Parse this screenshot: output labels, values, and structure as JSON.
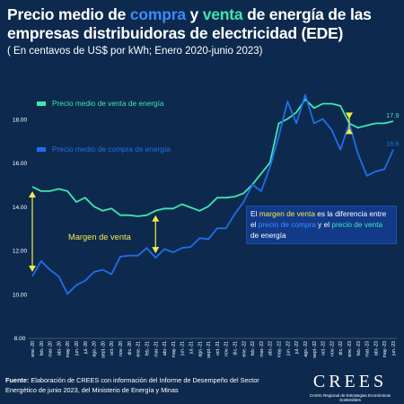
{
  "title": {
    "part1": "Precio medio de ",
    "compra": "compra",
    "part2": " y ",
    "venta": "venta",
    "part3": " de energía de las empresas distribuidoras de electricidad (EDE)"
  },
  "subtitle": "( En centavos de US$ por kWh; Enero 2020-junio 2023)",
  "annotation": {
    "margin_label": "Margen de venta",
    "note_part1": "El ",
    "note_margin": "margen de venta",
    "note_part2": " es la diferencia entre el ",
    "note_compra": "precio de compra",
    "note_part3": " y el ",
    "note_venta": "precio de venta",
    "note_part4": " de energía"
  },
  "source": {
    "prefix": "Fuente:",
    "text": " Elaboración de CREES con información del Informe de Desempeño del Sector Energético de junio 2023, del Ministerio de Energía y Minas"
  },
  "logo": {
    "name": "CREES",
    "tagline": "Centro Regional de Estrategias Económicas Sostenibles"
  },
  "colors": {
    "background": "#0d2a4e",
    "compra": "#1f6ee8",
    "venta": "#3ee6b0",
    "margin_arrow": "#f2ea4a"
  },
  "chart_data": {
    "type": "line",
    "x": [
      "ene.-20",
      "feb.-20",
      "mar.-20",
      "abr.-20",
      "may.-20",
      "jun.-20",
      "jul.-20",
      "ago.-20",
      "sept.-20",
      "oct.-20",
      "nov.-20",
      "dic.-20",
      "ene.-21",
      "feb.-21",
      "mar.-21",
      "abr.-21",
      "may.-21",
      "jun.-21",
      "jul.-21",
      "ago.-21",
      "sept.-21",
      "oct.-21",
      "nov.-21",
      "dic.-21",
      "ene.-22",
      "feb.-22",
      "mar.-22",
      "abr.-22",
      "may.-22",
      "jun.-22",
      "jul.-22",
      "ago.-22",
      "sept.-22",
      "oct.-22",
      "nov.-22",
      "dic.-22",
      "ene.-23",
      "feb.-23",
      "mar.-23",
      "abr.-23",
      "may.-23",
      "jun.-23"
    ],
    "x_tick_labels": [
      "ene.-20",
      "mar.-20",
      "may.-20",
      "jul.-20",
      "sept.-20",
      "nov.-20",
      "ene.-21",
      "mar.-21",
      "may.-21",
      "jul.-21",
      "sept.-21",
      "nov.-21",
      "ene.-22",
      "mar.-22",
      "may.-22",
      "jul.-22",
      "sept.-22",
      "nov.-22",
      "ene.-23",
      "mar.-23",
      "may.-23"
    ],
    "x_tick_labels_full": [
      "ene.-20",
      "feb.-20",
      "mar.-20",
      "abr.-20",
      "may.-20",
      "jun.-20",
      "jul.-20",
      "ago.-20",
      "sept.-20",
      "oct.-20",
      "nov.-20",
      "dic.-20",
      "ene.-21",
      "feb.-21",
      "mar.-21",
      "abr.-21",
      "may.-21",
      "jun.-21",
      "jul.-21",
      "ago.-21",
      "sept.-21",
      "oct.-21",
      "nov.-21",
      "dic.-21",
      "ene.-22",
      "feb.-22",
      "mar.-22",
      "abr.-22",
      "may.-22",
      "jun.-22",
      "jul.-22",
      "ago.-22",
      "sept.-22",
      "oct.-22",
      "nov.-22",
      "dic.-22",
      "ene.-23",
      "feb.-23",
      "mar.-23",
      "abr.-23",
      "may.-23",
      "jun.-23"
    ],
    "series": [
      {
        "name": "Precio medio de venta de energía",
        "color": "#3ee6b0",
        "values": [
          14.9,
          14.7,
          14.7,
          14.8,
          14.7,
          14.2,
          14.4,
          14.0,
          13.8,
          13.9,
          13.6,
          13.6,
          13.55,
          13.6,
          13.8,
          13.9,
          13.9,
          14.1,
          13.95,
          13.8,
          14.0,
          14.4,
          14.4,
          14.45,
          14.6,
          15.0,
          15.5,
          16.0,
          17.8,
          18.0,
          18.3,
          18.9,
          18.5,
          18.7,
          18.7,
          18.6,
          17.8,
          17.6,
          17.7,
          17.8,
          17.8,
          17.9
        ],
        "end_label": "17.9"
      },
      {
        "name": "Precio medio de compra de energía",
        "color": "#1f6ee8",
        "values": [
          10.8,
          11.5,
          11.1,
          10.8,
          10.0,
          10.4,
          10.6,
          11.0,
          11.1,
          10.9,
          11.7,
          11.75,
          11.75,
          12.1,
          11.65,
          12.05,
          11.9,
          12.1,
          12.15,
          12.55,
          12.5,
          13.0,
          13.0,
          13.65,
          14.2,
          15.0,
          14.7,
          15.8,
          17.2,
          18.8,
          17.8,
          19.1,
          17.8,
          18.0,
          17.5,
          16.6,
          17.8,
          16.4,
          15.4,
          15.6,
          15.7,
          16.6
        ],
        "end_label": "16.6"
      }
    ],
    "ylim": [
      8,
      19.5
    ],
    "y_ticks": [
      "8.00",
      "10.00",
      "12.00",
      "14.00",
      "16.00",
      "18.00"
    ],
    "grid": false,
    "legend": "top-left, inside plot",
    "margin_arrows_at": [
      "ene.-20",
      "mar.-21",
      "ene.-23"
    ]
  }
}
